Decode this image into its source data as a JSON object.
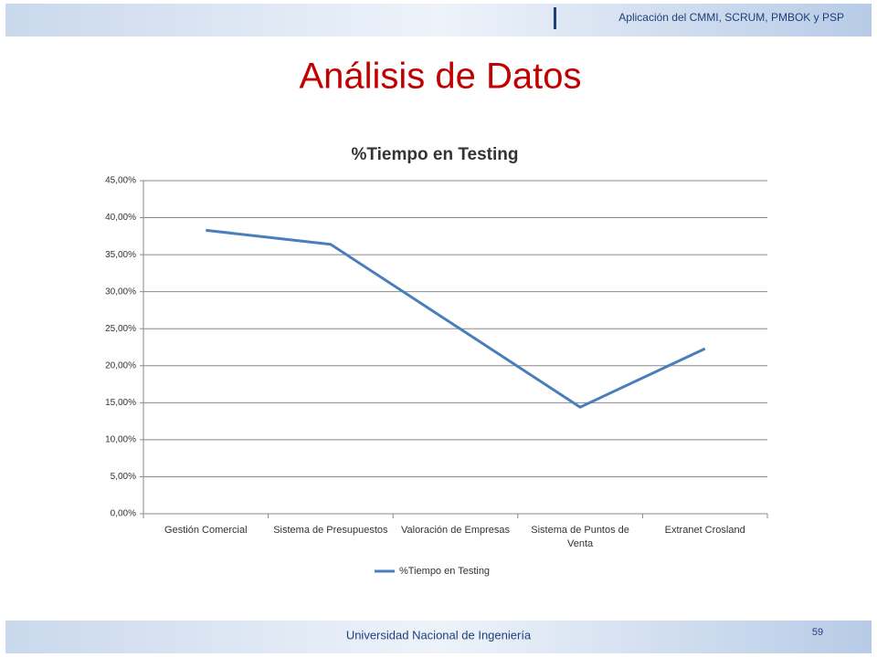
{
  "header": "Aplicación del CMMI, SCRUM, PMBOK y PSP",
  "title": "Análisis de Datos",
  "footer": "Universidad Nacional de Ingeniería",
  "page_number": "59",
  "chart_data": {
    "type": "line",
    "title": "%Tiempo en Testing",
    "categories": [
      "Gestión Comercial",
      "Sistema de Presupuestos",
      "Valoración de Empresas",
      "Sistema de Puntos de Venta",
      "Extranet Crosland"
    ],
    "series": [
      {
        "name": "%Tiempo en Testing",
        "color": "#4a7ebb",
        "values": [
          38.3,
          36.4,
          25.4,
          14.4,
          22.3
        ]
      }
    ],
    "ylim": [
      0,
      45
    ],
    "yticks": [
      {
        "value": 0,
        "label": "0,00%"
      },
      {
        "value": 5,
        "label": "5,00%"
      },
      {
        "value": 10,
        "label": "10,00%"
      },
      {
        "value": 15,
        "label": "15,00%"
      },
      {
        "value": 20,
        "label": "20,00%"
      },
      {
        "value": 25,
        "label": "25,00%"
      },
      {
        "value": 30,
        "label": "30,00%"
      },
      {
        "value": 35,
        "label": "35,00%"
      },
      {
        "value": 40,
        "label": "40,00%"
      },
      {
        "value": 45,
        "label": "45,00%"
      }
    ],
    "grid": true,
    "legend": "bottom"
  }
}
